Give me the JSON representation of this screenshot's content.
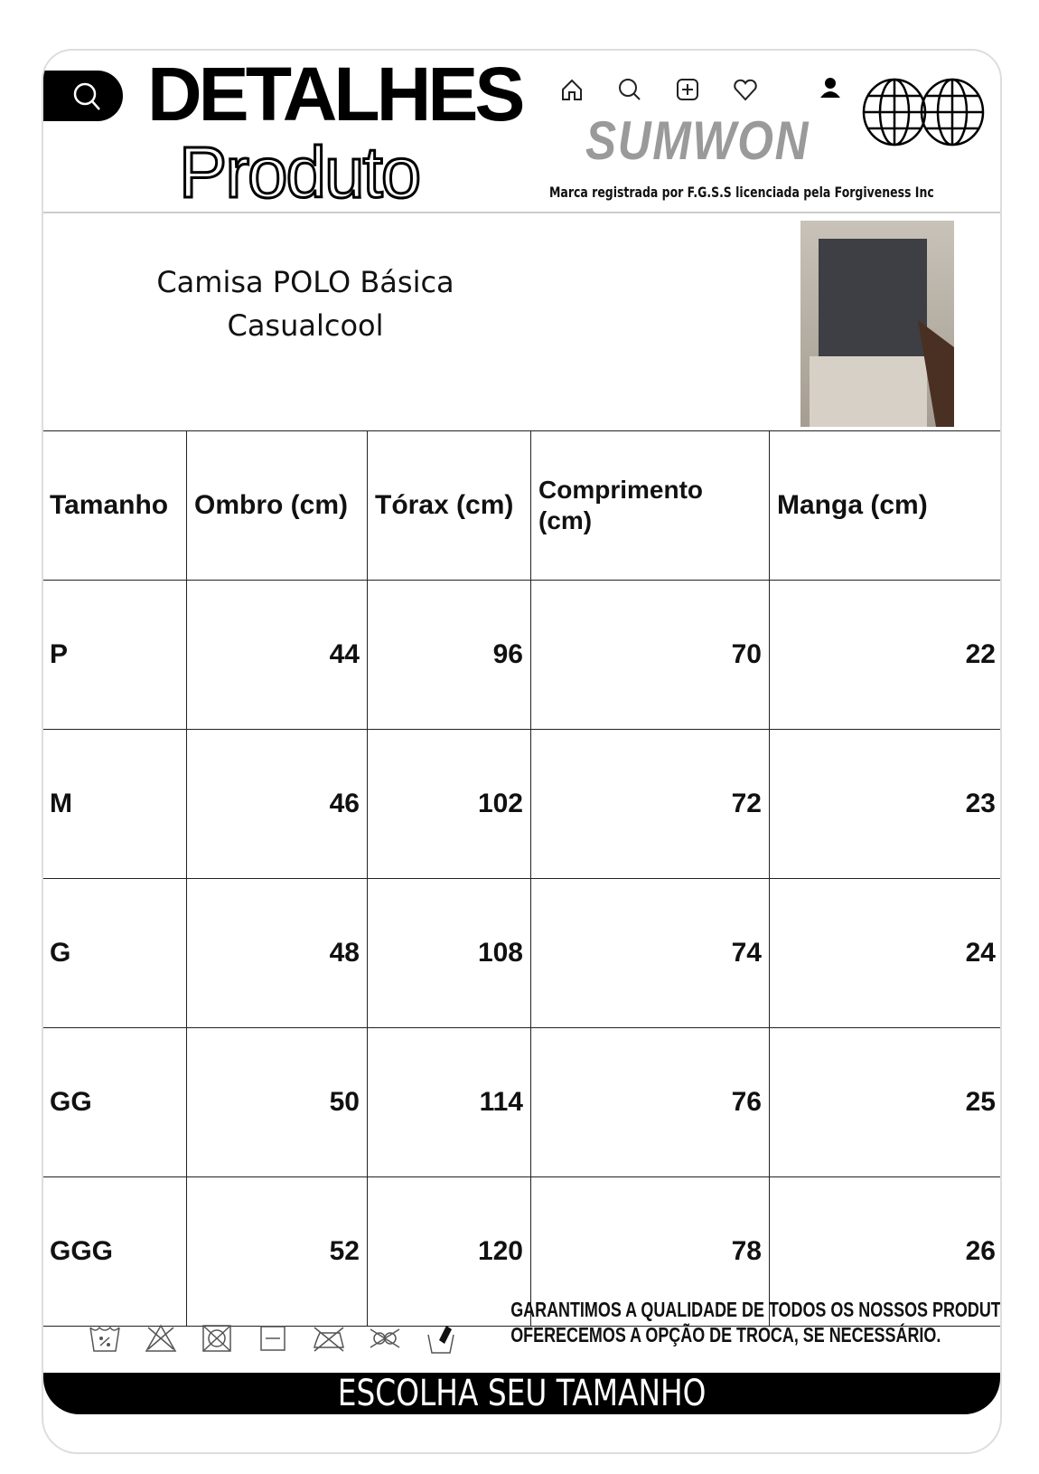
{
  "header": {
    "title_line1": "DETALHES",
    "title_line2": "Produto",
    "brand": "SUMWON",
    "registration": "Marca registrada por F.G.S.S licenciada pela Forgiveness Inc",
    "icons": [
      "search-icon",
      "home-icon",
      "search-icon",
      "add-icon",
      "heart-icon",
      "user-icon",
      "globe-icon"
    ]
  },
  "product": {
    "name_line1": "Camisa POLO Básica",
    "name_line2": "Casualcool"
  },
  "table": {
    "headers": [
      "Tamanho",
      "Ombro (cm)",
      "Tórax (cm)",
      "Comprimento (cm)",
      "Manga (cm)"
    ],
    "rows": [
      [
        "P",
        "44",
        "96",
        "70",
        "22"
      ],
      [
        "M",
        "46",
        "102",
        "72",
        "23"
      ],
      [
        "G",
        "48",
        "108",
        "74",
        "24"
      ],
      [
        "GG",
        "50",
        "114",
        "76",
        "25"
      ],
      [
        "GGG",
        "52",
        "120",
        "78",
        "26"
      ]
    ]
  },
  "footer": {
    "guarantee_line1": "GARANTIMOS A QUALIDADE DE TODOS OS NOSSOS PRODUTOS E",
    "guarantee_line2": "OFERECEMOS A OPÇÃO DE TROCA, SE NECESSÁRIO.",
    "banner": "ESCOLHA SEU TAMANHO",
    "care_icons": [
      "wash-30-icon",
      "no-bleach-icon",
      "no-tumble-dry-icon",
      "dry-flat-icon",
      "no-iron-icon",
      "no-dry-clean-icon",
      "hand-wash-icon"
    ]
  }
}
